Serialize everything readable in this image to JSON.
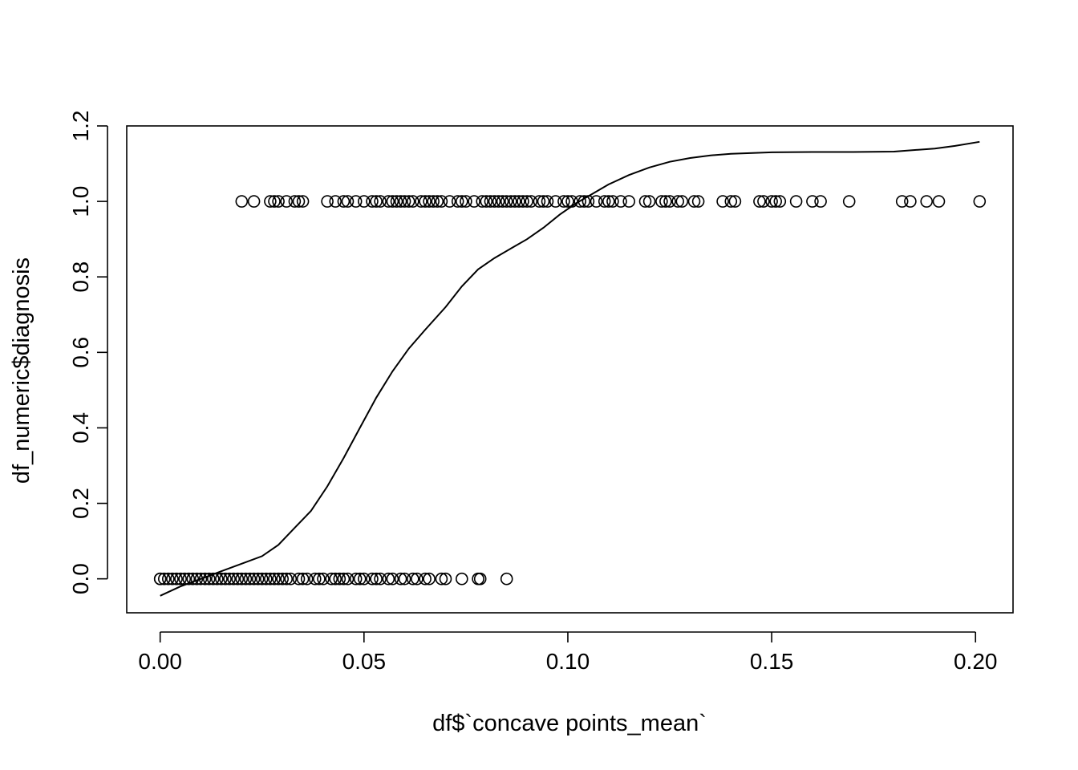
{
  "chart_data": {
    "type": "scatter",
    "xlabel": "df$`concave points_mean`",
    "ylabel": "df_numeric$diagnosis",
    "xlim": [
      -0.0082,
      0.2092
    ],
    "ylim": [
      -0.09,
      1.2
    ],
    "x_ticks": [
      0.0,
      0.05,
      0.1,
      0.15,
      0.2
    ],
    "x_tick_labels": [
      "0.00",
      "0.05",
      "0.10",
      "0.15",
      "0.20"
    ],
    "y_ticks": [
      0.0,
      0.2,
      0.4,
      0.6,
      0.8,
      1.0,
      1.2
    ],
    "y_tick_labels": [
      "0.0",
      "0.2",
      "0.4",
      "0.6",
      "0.8",
      "1.0",
      "1.2"
    ],
    "grid": false,
    "legend": "none",
    "marker": "open-circle",
    "color": "#000000",
    "series": [
      {
        "type": "scatter",
        "points": [
          {
            "x": 0.0,
            "y": 0
          },
          {
            "x": 0.0,
            "y": 0
          },
          {
            "x": 0.001,
            "y": 0
          },
          {
            "x": 0.002,
            "y": 0
          },
          {
            "x": 0.003,
            "y": 0
          },
          {
            "x": 0.004,
            "y": 0
          },
          {
            "x": 0.005,
            "y": 0
          },
          {
            "x": 0.006,
            "y": 0
          },
          {
            "x": 0.007,
            "y": 0
          },
          {
            "x": 0.008,
            "y": 0
          },
          {
            "x": 0.009,
            "y": 0
          },
          {
            "x": 0.01,
            "y": 0
          },
          {
            "x": 0.011,
            "y": 0
          },
          {
            "x": 0.012,
            "y": 0
          },
          {
            "x": 0.013,
            "y": 0
          },
          {
            "x": 0.014,
            "y": 0
          },
          {
            "x": 0.015,
            "y": 0
          },
          {
            "x": 0.016,
            "y": 0
          },
          {
            "x": 0.017,
            "y": 0
          },
          {
            "x": 0.018,
            "y": 0
          },
          {
            "x": 0.019,
            "y": 0
          },
          {
            "x": 0.02,
            "y": 0
          },
          {
            "x": 0.021,
            "y": 0
          },
          {
            "x": 0.022,
            "y": 0
          },
          {
            "x": 0.023,
            "y": 0
          },
          {
            "x": 0.024,
            "y": 0
          },
          {
            "x": 0.025,
            "y": 0
          },
          {
            "x": 0.026,
            "y": 0
          },
          {
            "x": 0.027,
            "y": 0
          },
          {
            "x": 0.028,
            "y": 0
          },
          {
            "x": 0.029,
            "y": 0
          },
          {
            "x": 0.03,
            "y": 0
          },
          {
            "x": 0.031,
            "y": 0
          },
          {
            "x": 0.032,
            "y": 0
          },
          {
            "x": 0.034,
            "y": 0
          },
          {
            "x": 0.035,
            "y": 0
          },
          {
            "x": 0.036,
            "y": 0
          },
          {
            "x": 0.038,
            "y": 0
          },
          {
            "x": 0.039,
            "y": 0
          },
          {
            "x": 0.04,
            "y": 0
          },
          {
            "x": 0.042,
            "y": 0
          },
          {
            "x": 0.043,
            "y": 0
          },
          {
            "x": 0.044,
            "y": 0
          },
          {
            "x": 0.045,
            "y": 0
          },
          {
            "x": 0.046,
            "y": 0
          },
          {
            "x": 0.048,
            "y": 0
          },
          {
            "x": 0.049,
            "y": 0
          },
          {
            "x": 0.05,
            "y": 0
          },
          {
            "x": 0.052,
            "y": 0
          },
          {
            "x": 0.053,
            "y": 0
          },
          {
            "x": 0.054,
            "y": 0
          },
          {
            "x": 0.056,
            "y": 0
          },
          {
            "x": 0.057,
            "y": 0
          },
          {
            "x": 0.059,
            "y": 0
          },
          {
            "x": 0.06,
            "y": 0
          },
          {
            "x": 0.062,
            "y": 0
          },
          {
            "x": 0.063,
            "y": 0
          },
          {
            "x": 0.065,
            "y": 0
          },
          {
            "x": 0.066,
            "y": 0
          },
          {
            "x": 0.069,
            "y": 0
          },
          {
            "x": 0.07,
            "y": 0
          },
          {
            "x": 0.074,
            "y": 0
          },
          {
            "x": 0.078,
            "y": 0
          },
          {
            "x": 0.0785,
            "y": 0
          },
          {
            "x": 0.085,
            "y": 0
          },
          {
            "x": 0.02,
            "y": 1
          },
          {
            "x": 0.023,
            "y": 1
          },
          {
            "x": 0.027,
            "y": 1
          },
          {
            "x": 0.028,
            "y": 1
          },
          {
            "x": 0.029,
            "y": 1
          },
          {
            "x": 0.031,
            "y": 1
          },
          {
            "x": 0.033,
            "y": 1
          },
          {
            "x": 0.034,
            "y": 1
          },
          {
            "x": 0.035,
            "y": 1
          },
          {
            "x": 0.041,
            "y": 1
          },
          {
            "x": 0.043,
            "y": 1
          },
          {
            "x": 0.045,
            "y": 1
          },
          {
            "x": 0.046,
            "y": 1
          },
          {
            "x": 0.048,
            "y": 1
          },
          {
            "x": 0.05,
            "y": 1
          },
          {
            "x": 0.052,
            "y": 1
          },
          {
            "x": 0.053,
            "y": 1
          },
          {
            "x": 0.054,
            "y": 1
          },
          {
            "x": 0.056,
            "y": 1
          },
          {
            "x": 0.057,
            "y": 1
          },
          {
            "x": 0.058,
            "y": 1
          },
          {
            "x": 0.059,
            "y": 1
          },
          {
            "x": 0.06,
            "y": 1
          },
          {
            "x": 0.061,
            "y": 1
          },
          {
            "x": 0.062,
            "y": 1
          },
          {
            "x": 0.064,
            "y": 1
          },
          {
            "x": 0.065,
            "y": 1
          },
          {
            "x": 0.066,
            "y": 1
          },
          {
            "x": 0.067,
            "y": 1
          },
          {
            "x": 0.068,
            "y": 1
          },
          {
            "x": 0.069,
            "y": 1
          },
          {
            "x": 0.071,
            "y": 1
          },
          {
            "x": 0.073,
            "y": 1
          },
          {
            "x": 0.074,
            "y": 1
          },
          {
            "x": 0.075,
            "y": 1
          },
          {
            "x": 0.077,
            "y": 1
          },
          {
            "x": 0.079,
            "y": 1
          },
          {
            "x": 0.08,
            "y": 1
          },
          {
            "x": 0.081,
            "y": 1
          },
          {
            "x": 0.082,
            "y": 1
          },
          {
            "x": 0.083,
            "y": 1
          },
          {
            "x": 0.084,
            "y": 1
          },
          {
            "x": 0.085,
            "y": 1
          },
          {
            "x": 0.086,
            "y": 1
          },
          {
            "x": 0.087,
            "y": 1
          },
          {
            "x": 0.088,
            "y": 1
          },
          {
            "x": 0.089,
            "y": 1
          },
          {
            "x": 0.09,
            "y": 1
          },
          {
            "x": 0.091,
            "y": 1
          },
          {
            "x": 0.093,
            "y": 1
          },
          {
            "x": 0.094,
            "y": 1
          },
          {
            "x": 0.095,
            "y": 1
          },
          {
            "x": 0.097,
            "y": 1
          },
          {
            "x": 0.099,
            "y": 1
          },
          {
            "x": 0.1,
            "y": 1
          },
          {
            "x": 0.101,
            "y": 1
          },
          {
            "x": 0.103,
            "y": 1
          },
          {
            "x": 0.104,
            "y": 1
          },
          {
            "x": 0.105,
            "y": 1
          },
          {
            "x": 0.107,
            "y": 1
          },
          {
            "x": 0.109,
            "y": 1
          },
          {
            "x": 0.11,
            "y": 1
          },
          {
            "x": 0.111,
            "y": 1
          },
          {
            "x": 0.113,
            "y": 1
          },
          {
            "x": 0.115,
            "y": 1
          },
          {
            "x": 0.119,
            "y": 1
          },
          {
            "x": 0.12,
            "y": 1
          },
          {
            "x": 0.123,
            "y": 1
          },
          {
            "x": 0.124,
            "y": 1
          },
          {
            "x": 0.125,
            "y": 1
          },
          {
            "x": 0.127,
            "y": 1
          },
          {
            "x": 0.128,
            "y": 1
          },
          {
            "x": 0.131,
            "y": 1
          },
          {
            "x": 0.132,
            "y": 1
          },
          {
            "x": 0.138,
            "y": 1
          },
          {
            "x": 0.14,
            "y": 1
          },
          {
            "x": 0.141,
            "y": 1
          },
          {
            "x": 0.147,
            "y": 1
          },
          {
            "x": 0.148,
            "y": 1
          },
          {
            "x": 0.15,
            "y": 1
          },
          {
            "x": 0.151,
            "y": 1
          },
          {
            "x": 0.152,
            "y": 1
          },
          {
            "x": 0.156,
            "y": 1
          },
          {
            "x": 0.16,
            "y": 1
          },
          {
            "x": 0.162,
            "y": 1
          },
          {
            "x": 0.169,
            "y": 1
          },
          {
            "x": 0.182,
            "y": 1
          },
          {
            "x": 0.184,
            "y": 1
          },
          {
            "x": 0.188,
            "y": 1
          },
          {
            "x": 0.191,
            "y": 1
          },
          {
            "x": 0.201,
            "y": 1
          }
        ]
      },
      {
        "type": "line",
        "points": [
          {
            "x": 0.0,
            "y": -0.045
          },
          {
            "x": 0.005,
            "y": -0.02
          },
          {
            "x": 0.01,
            "y": 0.0
          },
          {
            "x": 0.015,
            "y": 0.02
          },
          {
            "x": 0.02,
            "y": 0.04
          },
          {
            "x": 0.025,
            "y": 0.06
          },
          {
            "x": 0.029,
            "y": 0.09
          },
          {
            "x": 0.033,
            "y": 0.135
          },
          {
            "x": 0.037,
            "y": 0.18
          },
          {
            "x": 0.041,
            "y": 0.245
          },
          {
            "x": 0.045,
            "y": 0.32
          },
          {
            "x": 0.049,
            "y": 0.4
          },
          {
            "x": 0.053,
            "y": 0.48
          },
          {
            "x": 0.057,
            "y": 0.55
          },
          {
            "x": 0.061,
            "y": 0.61
          },
          {
            "x": 0.065,
            "y": 0.66
          },
          {
            "x": 0.07,
            "y": 0.72
          },
          {
            "x": 0.074,
            "y": 0.775
          },
          {
            "x": 0.078,
            "y": 0.82
          },
          {
            "x": 0.082,
            "y": 0.85
          },
          {
            "x": 0.086,
            "y": 0.875
          },
          {
            "x": 0.09,
            "y": 0.9
          },
          {
            "x": 0.094,
            "y": 0.93
          },
          {
            "x": 0.098,
            "y": 0.965
          },
          {
            "x": 0.102,
            "y": 0.995
          },
          {
            "x": 0.106,
            "y": 1.02
          },
          {
            "x": 0.11,
            "y": 1.045
          },
          {
            "x": 0.115,
            "y": 1.07
          },
          {
            "x": 0.12,
            "y": 1.09
          },
          {
            "x": 0.125,
            "y": 1.105
          },
          {
            "x": 0.13,
            "y": 1.115
          },
          {
            "x": 0.135,
            "y": 1.122
          },
          {
            "x": 0.14,
            "y": 1.126
          },
          {
            "x": 0.15,
            "y": 1.13
          },
          {
            "x": 0.16,
            "y": 1.131
          },
          {
            "x": 0.17,
            "y": 1.131
          },
          {
            "x": 0.18,
            "y": 1.132
          },
          {
            "x": 0.19,
            "y": 1.14
          },
          {
            "x": 0.195,
            "y": 1.147
          },
          {
            "x": 0.201,
            "y": 1.158
          }
        ]
      }
    ]
  }
}
